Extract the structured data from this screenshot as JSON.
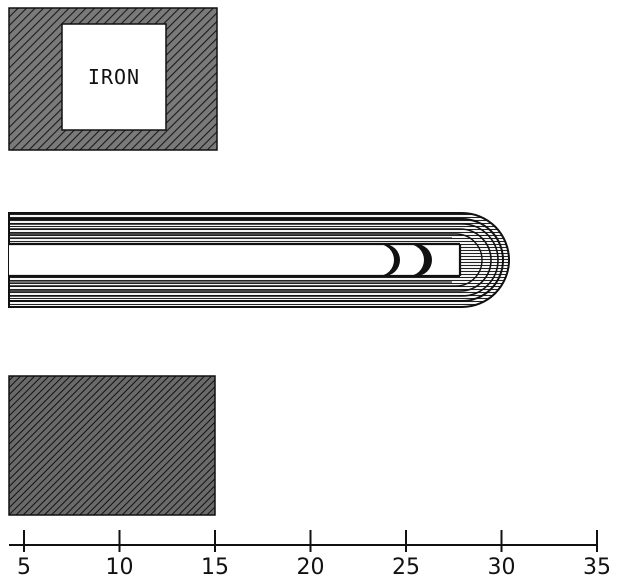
{
  "diagram": {
    "material_label": "IRON",
    "axis_ticks": [
      "5",
      "10",
      "15",
      "20",
      "25",
      "30",
      "35"
    ]
  },
  "colors": {
    "ink": "#111111",
    "paper": "#ffffff",
    "hatch_fill": "#777777"
  }
}
